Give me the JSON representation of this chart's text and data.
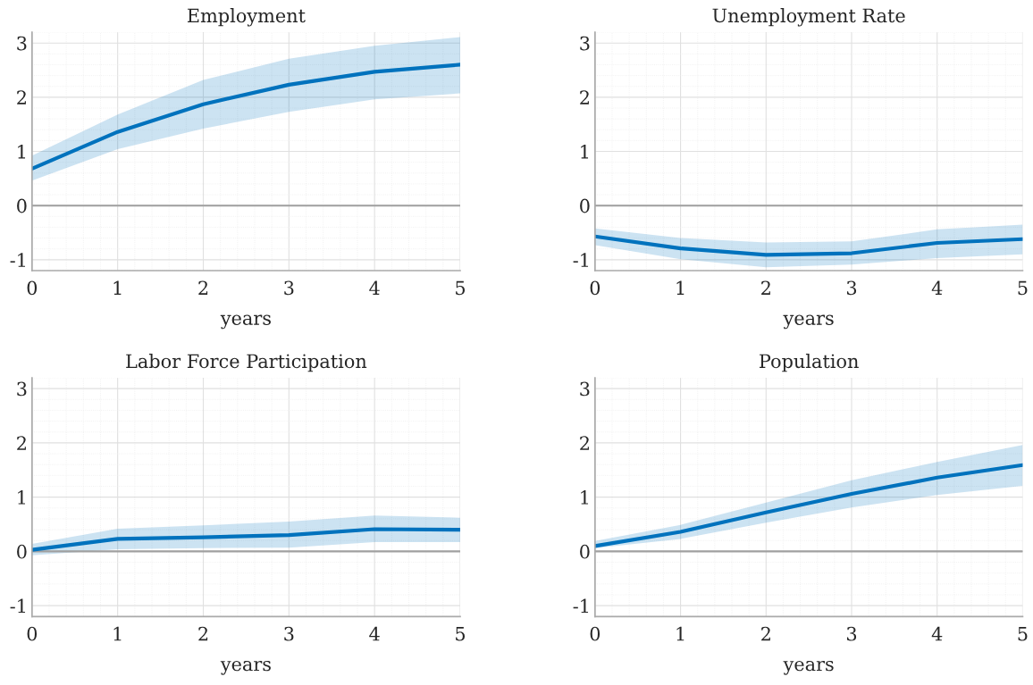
{
  "chart_data": [
    {
      "type": "line",
      "title": "Employment",
      "xlabel": "years",
      "x": [
        0,
        1,
        2,
        3,
        4,
        5
      ],
      "series": [
        {
          "color": "#0072bd",
          "values": [
            0.68,
            1.36,
            1.87,
            2.23,
            2.47,
            2.6
          ],
          "lower": [
            0.46,
            1.04,
            1.42,
            1.73,
            1.96,
            2.07
          ],
          "upper": [
            0.92,
            1.68,
            2.32,
            2.71,
            2.95,
            3.11
          ]
        }
      ],
      "xlim": [
        0,
        5
      ],
      "ylim": [
        -1.2,
        3.2
      ],
      "xticks": [
        0,
        1,
        2,
        3,
        4,
        5
      ],
      "yticks": [
        -1,
        0,
        1,
        2,
        3
      ],
      "grid": true,
      "ref_lines": [
        {
          "axis": "y",
          "value": 0,
          "color": "#a0a0a0"
        }
      ]
    },
    {
      "type": "line",
      "title": "Unemployment Rate",
      "xlabel": "years",
      "x": [
        0,
        1,
        2,
        3,
        4,
        5
      ],
      "series": [
        {
          "color": "#0072bd",
          "values": [
            -0.57,
            -0.79,
            -0.91,
            -0.88,
            -0.69,
            -0.62
          ],
          "lower": [
            -0.73,
            -0.99,
            -1.14,
            -1.09,
            -0.97,
            -0.9
          ],
          "upper": [
            -0.42,
            -0.6,
            -0.68,
            -0.66,
            -0.44,
            -0.35
          ]
        }
      ],
      "xlim": [
        0,
        5
      ],
      "ylim": [
        -1.2,
        3.2
      ],
      "xticks": [
        0,
        1,
        2,
        3,
        4,
        5
      ],
      "yticks": [
        -1,
        0,
        1,
        2,
        3
      ],
      "grid": true,
      "ref_lines": [
        {
          "axis": "y",
          "value": 0,
          "color": "#a0a0a0"
        }
      ]
    },
    {
      "type": "line",
      "title": "Labor Force Participation",
      "xlabel": "years",
      "x": [
        0,
        1,
        2,
        3,
        4,
        5
      ],
      "series": [
        {
          "color": "#0072bd",
          "values": [
            0.03,
            0.23,
            0.26,
            0.3,
            0.41,
            0.4
          ],
          "lower": [
            -0.07,
            0.04,
            0.06,
            0.07,
            0.17,
            0.17
          ],
          "upper": [
            0.14,
            0.42,
            0.48,
            0.55,
            0.66,
            0.62
          ]
        }
      ],
      "xlim": [
        0,
        5
      ],
      "ylim": [
        -1.2,
        3.2
      ],
      "xticks": [
        0,
        1,
        2,
        3,
        4,
        5
      ],
      "yticks": [
        -1,
        0,
        1,
        2,
        3
      ],
      "grid": true,
      "ref_lines": [
        {
          "axis": "y",
          "value": 0,
          "color": "#a0a0a0"
        }
      ]
    },
    {
      "type": "line",
      "title": "Population",
      "xlabel": "years",
      "x": [
        0,
        1,
        2,
        3,
        4,
        5
      ],
      "series": [
        {
          "color": "#0072bd",
          "values": [
            0.1,
            0.36,
            0.72,
            1.06,
            1.36,
            1.59
          ],
          "lower": [
            0.06,
            0.23,
            0.53,
            0.81,
            1.04,
            1.21
          ],
          "upper": [
            0.19,
            0.49,
            0.9,
            1.31,
            1.65,
            1.96
          ]
        }
      ],
      "xlim": [
        0,
        5
      ],
      "ylim": [
        -1.2,
        3.2
      ],
      "xticks": [
        0,
        1,
        2,
        3,
        4,
        5
      ],
      "yticks": [
        -1,
        0,
        1,
        2,
        3
      ],
      "grid": true,
      "ref_lines": [
        {
          "axis": "y",
          "value": 0,
          "color": "#a0a0a0"
        }
      ]
    }
  ]
}
